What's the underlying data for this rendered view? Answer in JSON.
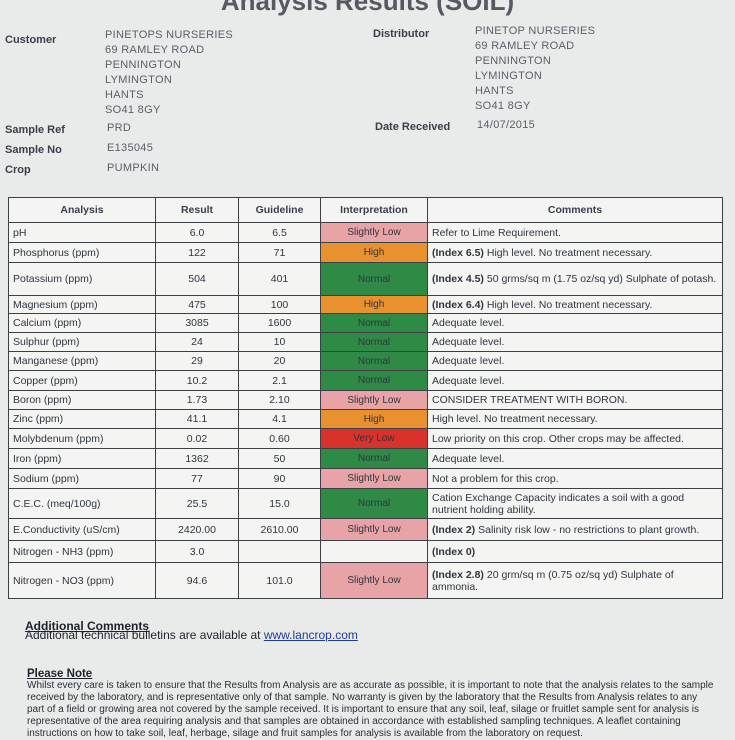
{
  "header": {
    "title": "Analysis Results (SOIL)"
  },
  "customer": {
    "label": "Customer",
    "lines": [
      "PINETOPS NURSERIES",
      "69 RAMLEY ROAD",
      "PENNINGTON",
      "LYMINGTON",
      "HANTS",
      "SO41 8GY"
    ]
  },
  "distributor": {
    "label": "Distributor",
    "lines": [
      "PINETOP NURSERIES",
      "69 RAMLEY ROAD",
      "PENNINGTON",
      "LYMINGTON",
      "HANTS",
      "SO41 8GY"
    ]
  },
  "sample": {
    "ref_label": "Sample Ref",
    "ref": "PRD",
    "no_label": "Sample No",
    "no": "E135045",
    "crop_label": "Crop",
    "crop": "PUMPKIN",
    "date_label": "Date Received",
    "date": "14/07/2015"
  },
  "table": {
    "headers": [
      "Analysis",
      "Result",
      "Guideline",
      "Interpretation",
      "Comments"
    ],
    "rows": [
      {
        "analysis": "pH",
        "result": "6.0",
        "guideline": "6.5",
        "interpretation": "Slightly Low",
        "color": "#e7a3a6",
        "index": null,
        "comment": "Refer to Lime Requirement."
      },
      {
        "analysis": "Phosphorus (ppm)",
        "result": "122",
        "guideline": "71",
        "interpretation": "High",
        "color": "#e9902f",
        "index": "(Index 6.5)",
        "comment": "High level. No treatment necessary."
      },
      {
        "analysis": "Potassium (ppm)",
        "result": "504",
        "guideline": "401",
        "interpretation": "Normal",
        "color": "#2f8a45",
        "index": "(Index 4.5)",
        "comment": "50 grms/sq m (1.75 oz/sq yd) Sulphate of potash."
      },
      {
        "analysis": "Magnesium (ppm)",
        "result": "475",
        "guideline": "100",
        "interpretation": "High",
        "color": "#e9902f",
        "index": "(Index 6.4)",
        "comment": "High level. No treatment necessary."
      },
      {
        "analysis": "Calcium (ppm)",
        "result": "3085",
        "guideline": "1600",
        "interpretation": "Normal",
        "color": "#2f8a45",
        "index": null,
        "comment": "Adequate level."
      },
      {
        "analysis": "Sulphur (ppm)",
        "result": "24",
        "guideline": "10",
        "interpretation": "Normal",
        "color": "#2f8a45",
        "index": null,
        "comment": "Adequate level."
      },
      {
        "analysis": "Manganese (ppm)",
        "result": "29",
        "guideline": "20",
        "interpretation": "Normal",
        "color": "#2f8a45",
        "index": null,
        "comment": "Adequate level."
      },
      {
        "analysis": "Copper (ppm)",
        "result": "10.2",
        "guideline": "2.1",
        "interpretation": "Normal",
        "color": "#2f8a45",
        "index": null,
        "comment": "Adequate level."
      },
      {
        "analysis": "Boron (ppm)",
        "result": "1.73",
        "guideline": "2.10",
        "interpretation": "Slightly Low",
        "color": "#e7a3a6",
        "index": null,
        "comment": "CONSIDER TREATMENT WITH BORON."
      },
      {
        "analysis": "Zinc (ppm)",
        "result": "41.1",
        "guideline": "4.1",
        "interpretation": "High",
        "color": "#e9902f",
        "index": null,
        "comment": "High level. No treatment necessary."
      },
      {
        "analysis": "Molybdenum (ppm)",
        "result": "0.02",
        "guideline": "0.60",
        "interpretation": "Very Low",
        "color": "#d9312c",
        "index": null,
        "comment": "Low priority on this crop.  Other crops may be affected."
      },
      {
        "analysis": "Iron (ppm)",
        "result": "1362",
        "guideline": "50",
        "interpretation": "Normal",
        "color": "#2f8a45",
        "index": null,
        "comment": "Adequate level."
      },
      {
        "analysis": "Sodium (ppm)",
        "result": "77",
        "guideline": "90",
        "interpretation": "Slightly Low",
        "color": "#e7a3a6",
        "index": null,
        "comment": "Not a problem for this crop."
      },
      {
        "analysis": "C.E.C. (meq/100g)",
        "result": "25.5",
        "guideline": "15.0",
        "interpretation": "Normal",
        "color": "#2f8a45",
        "index": null,
        "comment": "Cation Exchange Capacity indicates a soil with a good nutrient holding ability."
      },
      {
        "analysis": "E.Conductivity (uS/cm)",
        "result": "2420.00",
        "guideline": "2610.00",
        "interpretation": "Slightly Low",
        "color": "#e7a3a6",
        "index": "(Index 2)",
        "comment": "Salinity risk low - no restrictions to plant growth."
      },
      {
        "analysis": "Nitrogen - NH3 (ppm)",
        "result": "3.0",
        "guideline": null,
        "interpretation": null,
        "color": null,
        "index": "(Index 0)",
        "comment": null
      },
      {
        "analysis": "Nitrogen - NO3 (ppm)",
        "result": "94.6",
        "guideline": "101.0",
        "interpretation": "Slightly Low",
        "color": "#e7a3a6",
        "index": "(Index 2.8)",
        "comment": "20 grm/sq m (0.75 oz/sq yd) Sulphate of ammonia."
      }
    ]
  },
  "additional": {
    "heading": "Additional Comments",
    "text": "Additional technical bulletins are available at",
    "link": "www.lancrop.com"
  },
  "note": {
    "heading": "Please Note",
    "text": "Whilst every care is taken to ensure that the Results from Analysis are as accurate as possible, it is important to note that the analysis relates to the sample received by the laboratory, and is representative only of that sample. No warranty is given by the laboratory that the Results from Analysis relates to any part of a field or growing area not covered by the sample received. It is important to ensure that any soil, leaf, silage or fruitlet sample sent for analysis is representative of the area requiring analysis and that samples are obtained in accordance with established sampling techniques. A leaflet containing instructions on how to take soil, leaf, herbage, silage and fruit samples for analysis is available from the laboratory on request."
  }
}
